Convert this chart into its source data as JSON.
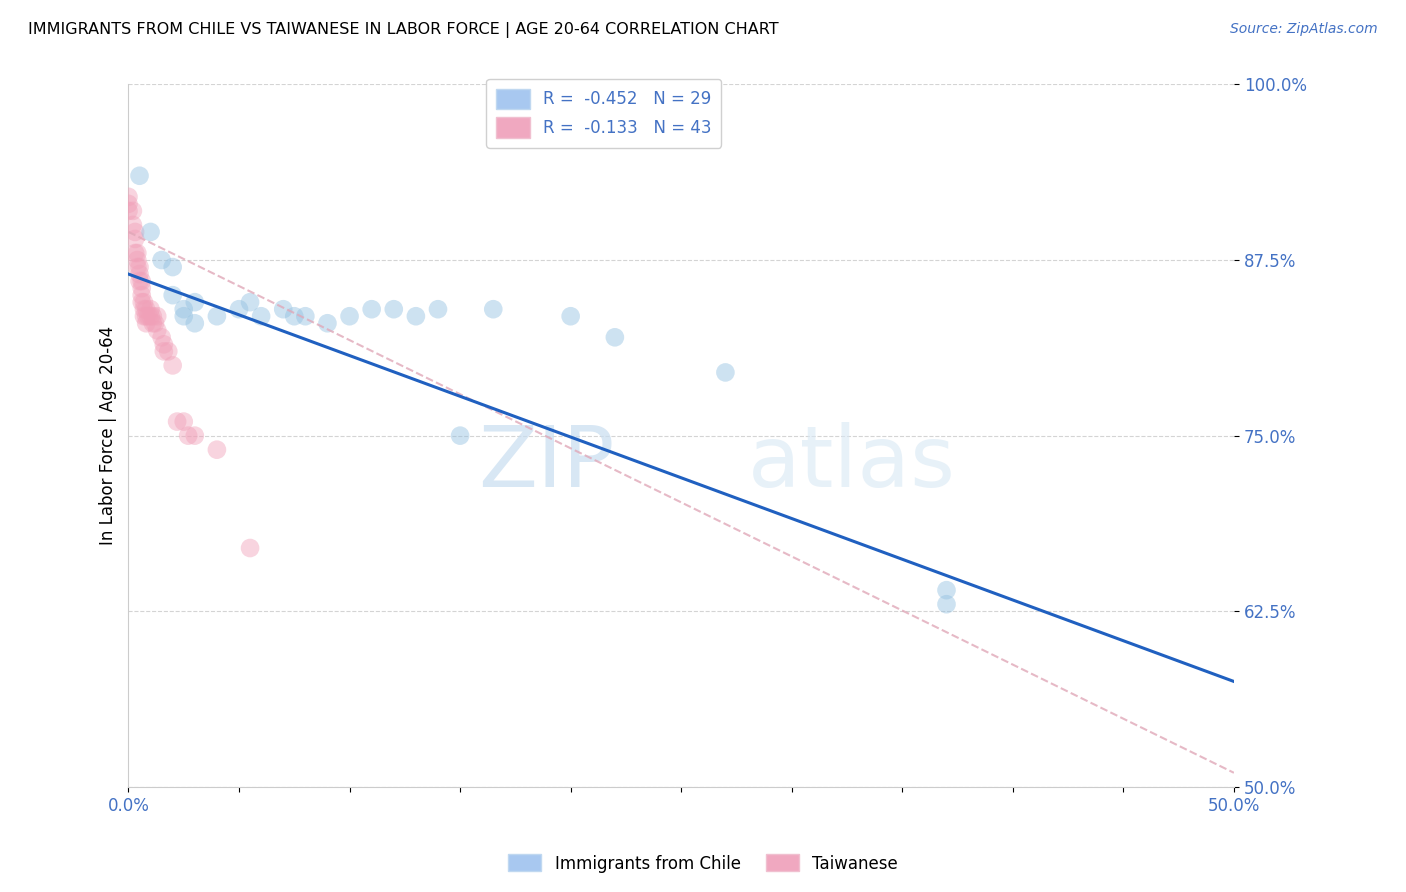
{
  "title": "IMMIGRANTS FROM CHILE VS TAIWANESE IN LABOR FORCE | AGE 20-64 CORRELATION CHART",
  "source": "Source: ZipAtlas.com",
  "ylabel": "In Labor Force | Age 20-64",
  "xlim": [
    0.0,
    0.5
  ],
  "ylim": [
    0.5,
    1.0
  ],
  "xtick_positions": [
    0.0,
    0.05,
    0.1,
    0.15,
    0.2,
    0.25,
    0.3,
    0.35,
    0.4,
    0.45,
    0.5
  ],
  "xticklabels": [
    "0.0%",
    "",
    "",
    "",
    "",
    "",
    "",
    "",
    "",
    "",
    "50.0%"
  ],
  "ytick_positions": [
    0.5,
    0.625,
    0.75,
    0.875,
    1.0
  ],
  "yticklabels": [
    "50.0%",
    "62.5%",
    "75.0%",
    "87.5%",
    "100.0%"
  ],
  "blue_scatter_x": [
    0.005,
    0.01,
    0.015,
    0.02,
    0.02,
    0.025,
    0.025,
    0.03,
    0.03,
    0.04,
    0.05,
    0.055,
    0.06,
    0.07,
    0.075,
    0.08,
    0.09,
    0.1,
    0.11,
    0.12,
    0.13,
    0.14,
    0.15,
    0.165,
    0.2,
    0.22,
    0.27,
    0.37,
    0.37
  ],
  "blue_scatter_y": [
    0.935,
    0.895,
    0.875,
    0.87,
    0.85,
    0.84,
    0.835,
    0.845,
    0.83,
    0.835,
    0.84,
    0.845,
    0.835,
    0.84,
    0.835,
    0.835,
    0.83,
    0.835,
    0.84,
    0.84,
    0.835,
    0.84,
    0.75,
    0.84,
    0.835,
    0.82,
    0.795,
    0.64,
    0.63
  ],
  "pink_scatter_x": [
    0.0,
    0.0,
    0.0,
    0.002,
    0.002,
    0.003,
    0.003,
    0.003,
    0.004,
    0.004,
    0.004,
    0.005,
    0.005,
    0.005,
    0.006,
    0.006,
    0.006,
    0.006,
    0.007,
    0.007,
    0.007,
    0.008,
    0.008,
    0.008,
    0.009,
    0.01,
    0.01,
    0.011,
    0.011,
    0.012,
    0.013,
    0.013,
    0.015,
    0.016,
    0.016,
    0.018,
    0.02,
    0.022,
    0.025,
    0.027,
    0.03,
    0.04,
    0.055
  ],
  "pink_scatter_y": [
    0.92,
    0.915,
    0.91,
    0.91,
    0.9,
    0.895,
    0.89,
    0.88,
    0.88,
    0.875,
    0.87,
    0.87,
    0.865,
    0.86,
    0.86,
    0.855,
    0.85,
    0.845,
    0.845,
    0.84,
    0.835,
    0.84,
    0.835,
    0.83,
    0.835,
    0.84,
    0.835,
    0.835,
    0.83,
    0.83,
    0.835,
    0.825,
    0.82,
    0.815,
    0.81,
    0.81,
    0.8,
    0.76,
    0.76,
    0.75,
    0.75,
    0.74,
    0.67
  ],
  "blue_line_x": [
    0.0,
    0.5
  ],
  "blue_line_y": [
    0.865,
    0.575
  ],
  "pink_line_x": [
    0.0,
    0.5
  ],
  "pink_line_y": [
    0.895,
    0.51
  ],
  "watermark_zip": "ZIP",
  "watermark_atlas": "atlas",
  "blue_color": "#92c0e0",
  "pink_color": "#f0a0b8",
  "blue_line_color": "#2060c0",
  "pink_line_color": "#e0a8b8",
  "marker_size": 180,
  "marker_alpha": 0.45,
  "legend_blue_label": "R =  -0.452   N = 29",
  "legend_pink_label": "R =  -0.133   N = 43",
  "bottom_blue_label": "Immigrants from Chile",
  "bottom_pink_label": "Taiwanese"
}
